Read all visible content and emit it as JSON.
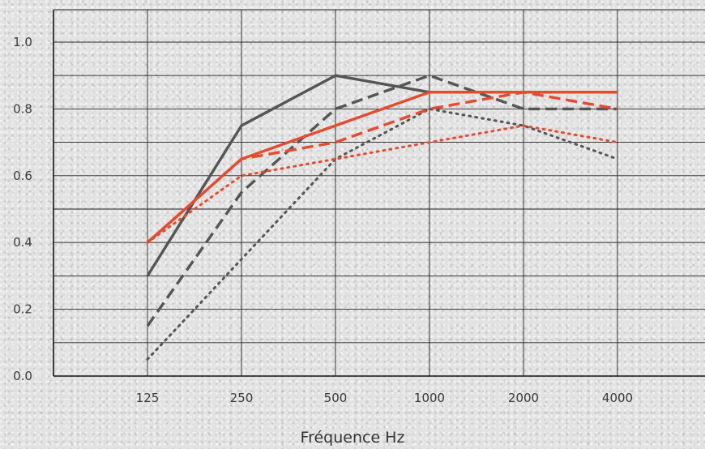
{
  "chart_data": {
    "type": "line",
    "title": "",
    "xlabel": "Fréquence Hz",
    "ylabel": "",
    "categories": [
      "125",
      "250",
      "500",
      "1000",
      "2000",
      "4000"
    ],
    "ylim": [
      0.0,
      1.0
    ],
    "yticks": [
      "0.0",
      "0.2",
      "0.4",
      "0.6",
      "0.8",
      "1.0"
    ],
    "grid": true,
    "series": [
      {
        "color": "#555555",
        "dash": "solid",
        "values": [
          0.3,
          0.75,
          0.9,
          0.85,
          0.85,
          0.85
        ]
      },
      {
        "color": "#555555",
        "dash": "dashed",
        "values": [
          0.15,
          0.55,
          0.8,
          0.9,
          0.8,
          0.8
        ]
      },
      {
        "color": "#555555",
        "dash": "dotted",
        "values": [
          0.05,
          0.35,
          0.65,
          0.8,
          0.75,
          0.65
        ]
      },
      {
        "color": "#e84a2e",
        "dash": "solid",
        "values": [
          0.4,
          0.65,
          0.75,
          0.85,
          0.85,
          0.85
        ]
      },
      {
        "color": "#e84a2e",
        "dash": "dashed",
        "values": [
          0.4,
          0.65,
          0.7,
          0.8,
          0.85,
          0.8
        ]
      },
      {
        "color": "#e84a2e",
        "dash": "dotted",
        "values": [
          0.4,
          0.6,
          0.65,
          0.7,
          0.75,
          0.7
        ]
      }
    ]
  }
}
